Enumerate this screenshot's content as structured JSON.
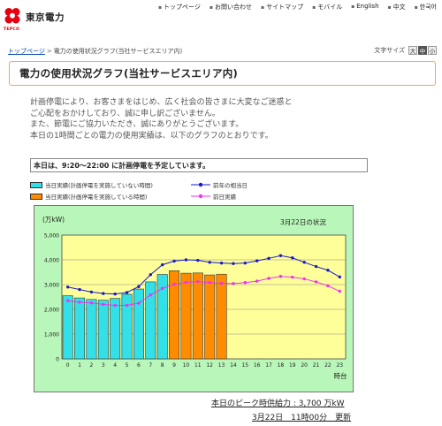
{
  "header": {
    "logo_text": "東京電力",
    "logo_sub": "TEPCO",
    "nav": [
      "トップページ",
      "お問い合わせ",
      "サイトマップ",
      "モバイル",
      "English",
      "中文",
      "한국어"
    ]
  },
  "breadcrumb": {
    "home": "トップページ",
    "sep": ">",
    "current": "電力の使用状況グラフ(当社サービスエリア内)"
  },
  "font_size": {
    "label": "文字サイズ",
    "options": [
      "大",
      "中",
      "小"
    ],
    "active": 1
  },
  "page_title": "電力の使用状況グラフ(当社サービスエリア内)",
  "intro": [
    "計画停電により、お客さまをはじめ、広く社会の皆さまに大変なご迷惑と",
    "ご心配をおかけしており、誠に申し訳ございません。",
    "また、節電にご協力いただき、誠にありがとうございます。",
    "本日の1時間ごとの電力の使用実績は、以下のグラフのとおりです。"
  ],
  "notice": "本日は、9:20～22:00 に計画停電を予定しています。",
  "legend": {
    "bar_no_outage": "当日実績(計画停電を実施していない時間)",
    "bar_outage": "当日実績(計画停電を実施している時間)",
    "line_last_year": "前年の相当日",
    "line_yesterday": "前日実績"
  },
  "colors": {
    "bar_no_outage": "#33e0e8",
    "bar_outage": "#ff8c00",
    "line_last_year": "#1a1acc",
    "line_yesterday": "#ee33ee",
    "plot_bg": "#ffff99",
    "chart_bg": "#b9f6b9",
    "title_border": "#f0a55a"
  },
  "chart_data": {
    "type": "bar",
    "ylabel": "(万kW)",
    "xlabel": "時台",
    "date_label": "3月22日の状況",
    "ylim": [
      0,
      5000
    ],
    "y_ticks": [
      0,
      1000,
      2000,
      3000,
      4000,
      5000
    ],
    "categories": [
      "0",
      "1",
      "2",
      "3",
      "4",
      "5",
      "6",
      "7",
      "8",
      "9",
      "10",
      "11",
      "12",
      "13",
      "14",
      "15",
      "16",
      "17",
      "18",
      "19",
      "20",
      "21",
      "22",
      "23"
    ],
    "series": [
      {
        "name": "当日実績(計画停電を実施していない時間)",
        "kind": "bar",
        "values": [
          2550,
          2460,
          2400,
          2370,
          2440,
          2610,
          2820,
          3110,
          3410,
          null,
          null,
          null,
          null,
          null,
          null,
          null,
          null,
          null,
          null,
          null,
          null,
          null,
          null,
          null
        ]
      },
      {
        "name": "当日実績(計画停電を実施している時間)",
        "kind": "bar",
        "values": [
          null,
          null,
          null,
          null,
          null,
          null,
          null,
          null,
          null,
          3560,
          3460,
          3470,
          3390,
          3420,
          null,
          null,
          null,
          null,
          null,
          null,
          null,
          null,
          null,
          null
        ]
      },
      {
        "name": "前年の相当日",
        "kind": "line",
        "values": [
          2900,
          2800,
          2700,
          2640,
          2620,
          2680,
          2920,
          3400,
          3800,
          3950,
          4000,
          3980,
          3900,
          3870,
          3850,
          3870,
          3960,
          4060,
          4170,
          4080,
          3900,
          3730,
          3580,
          3310
        ]
      },
      {
        "name": "前日実績",
        "kind": "line",
        "values": [
          2350,
          2290,
          2260,
          2200,
          2160,
          2160,
          2250,
          2580,
          2850,
          3010,
          3090,
          3120,
          3080,
          3050,
          3040,
          3080,
          3140,
          3250,
          3330,
          3300,
          3230,
          3110,
          2950,
          2730
        ]
      }
    ]
  },
  "footer": {
    "peak_supply": "本日のピーク時供給力 : 3,700 万kW",
    "updated": "3月22日　11時00分　更新"
  }
}
